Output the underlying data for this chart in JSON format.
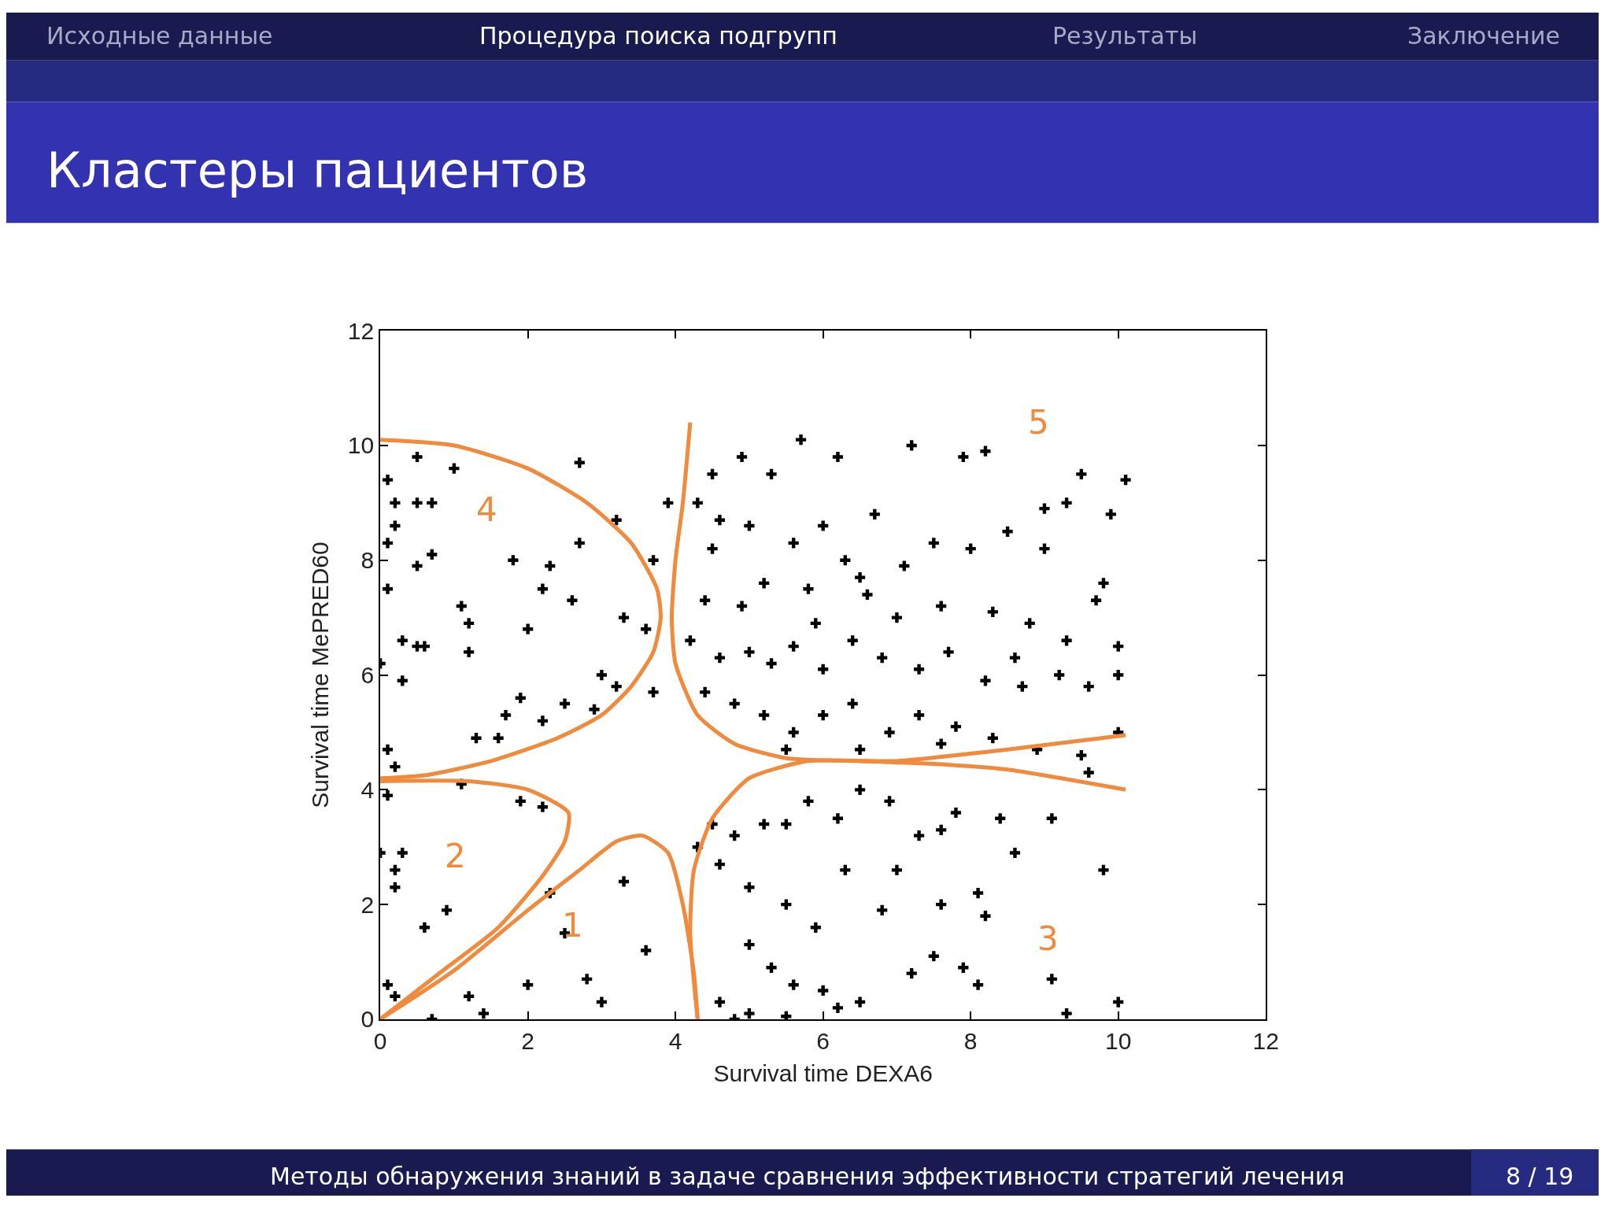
{
  "chart_data": {
    "type": "scatter",
    "title": "Кластеры пациентов",
    "xlabel": "Survival time DEXA6",
    "ylabel": "Survival time MePRED60",
    "xlim": [
      0,
      12
    ],
    "ylim": [
      0,
      12
    ],
    "xticks": [
      0,
      2,
      4,
      6,
      8,
      10,
      12
    ],
    "yticks": [
      0,
      2,
      4,
      6,
      8,
      10,
      12
    ],
    "series": [
      {
        "type": "scatter",
        "color": "#000000",
        "marker": "cross",
        "x": [
          0.1,
          0.2,
          0.2,
          0.5,
          0.7,
          0.5,
          0.7,
          0.1,
          0.1,
          0.3,
          0.5,
          0.3,
          1.1,
          1.2,
          1.2,
          1.7,
          1.3,
          1.6,
          2.0,
          2.2,
          2.6,
          2.7,
          2.7,
          2.3,
          0.1,
          0.2,
          3.3,
          3.2,
          3.0,
          3.2,
          2.9,
          3.6,
          0.5,
          1.0,
          1.8,
          2.5,
          3.7,
          3.9,
          0.0,
          0.6,
          1.9,
          2.2,
          3.7,
          4.5,
          4.9,
          5.3,
          5.7,
          6.2,
          7.2,
          7.9,
          8.2,
          4.3,
          4.6,
          5.0,
          5.6,
          6.0,
          6.3,
          6.5,
          7.1,
          7.5,
          8.0,
          8.5,
          9.0,
          9.5,
          10.1,
          9.9,
          9.3,
          4.4,
          4.9,
          5.2,
          5.8,
          6.6,
          7.0,
          7.6,
          8.3,
          8.8,
          9.3,
          9.7,
          10.0,
          4.2,
          4.6,
          5.0,
          5.3,
          5.6,
          6.0,
          6.4,
          6.8,
          7.3,
          7.7,
          8.2,
          8.7,
          9.2,
          9.6,
          10.0,
          4.4,
          4.8,
          5.2,
          5.6,
          6.0,
          6.4,
          6.9,
          7.3,
          7.8,
          8.3,
          8.9,
          9.5,
          10.0,
          5.5,
          6.5,
          7.6,
          9.0,
          8.6,
          5.9,
          6.7,
          4.5,
          9.8,
          4.3,
          4.5,
          4.8,
          5.2,
          5.5,
          5.8,
          6.2,
          6.5,
          6.9,
          7.3,
          7.6,
          7.8,
          8.4,
          9.1,
          9.6,
          9.8,
          8.6,
          4.6,
          5.0,
          5.5,
          6.3,
          7.0,
          7.6,
          8.1,
          8.2,
          5.0,
          5.3,
          5.6,
          6.0,
          4.6,
          5.0,
          5.5,
          6.2,
          6.5,
          7.5,
          7.9,
          8.1,
          9.1,
          9.3,
          10.0,
          4.8,
          6.8,
          5.9,
          7.2,
          0.1,
          0.0,
          0.2,
          0.3,
          0.2,
          1.1,
          1.9,
          2.2,
          0.9,
          0.6,
          0.1,
          0.2,
          2.3,
          2.5,
          3.3,
          3.6,
          2.8,
          3.0,
          2.0,
          1.2,
          1.4,
          0.7
        ],
        "values": [
          9.4,
          9.0,
          8.6,
          9.0,
          9.0,
          7.9,
          8.1,
          7.5,
          8.3,
          6.6,
          6.5,
          5.9,
          7.2,
          6.9,
          6.4,
          5.3,
          4.9,
          4.9,
          6.8,
          7.5,
          7.3,
          8.3,
          9.7,
          7.9,
          4.7,
          4.4,
          7.0,
          8.7,
          6.0,
          5.8,
          5.4,
          6.8,
          9.8,
          9.6,
          8.0,
          5.5,
          5.7,
          9.0,
          6.2,
          6.5,
          5.6,
          5.2,
          8.0,
          9.5,
          9.8,
          9.5,
          10.1,
          9.8,
          10.0,
          9.8,
          9.9,
          9.0,
          8.7,
          8.6,
          8.3,
          8.6,
          8.0,
          7.7,
          7.9,
          8.3,
          8.2,
          8.5,
          8.9,
          9.5,
          9.4,
          8.8,
          9.0,
          7.3,
          7.2,
          7.6,
          7.5,
          7.4,
          7.0,
          7.2,
          7.1,
          6.9,
          6.6,
          7.3,
          6.5,
          6.6,
          6.3,
          6.4,
          6.2,
          6.5,
          6.1,
          6.6,
          6.3,
          6.1,
          6.4,
          5.9,
          5.8,
          6.0,
          5.8,
          6.0,
          5.7,
          5.5,
          5.3,
          5.0,
          5.3,
          5.5,
          5.0,
          5.3,
          5.1,
          4.9,
          4.7,
          4.6,
          5.0,
          4.7,
          4.7,
          4.8,
          8.2,
          6.3,
          6.9,
          8.8,
          8.2,
          7.6,
          3.0,
          3.4,
          3.2,
          3.4,
          3.4,
          3.8,
          3.5,
          4.0,
          3.8,
          3.2,
          3.3,
          3.6,
          3.5,
          3.5,
          4.3,
          2.6,
          2.9,
          2.7,
          2.3,
          2.0,
          2.6,
          2.6,
          2.0,
          2.2,
          1.8,
          1.3,
          0.9,
          0.6,
          0.5,
          0.3,
          0.1,
          0.05,
          0.2,
          0.3,
          1.1,
          0.9,
          0.6,
          0.7,
          0.1,
          0.3,
          0.0,
          1.9,
          1.6,
          0.8,
          3.9,
          2.9,
          2.6,
          2.9,
          2.3,
          4.1,
          3.8,
          3.7,
          1.9,
          1.6,
          0.6,
          0.4,
          2.2,
          1.5,
          2.4,
          1.2,
          0.7,
          0.3,
          0.6,
          0.4,
          0.1,
          0.0
        ]
      },
      {
        "type": "line",
        "color": "#f08a3c",
        "x": [
          0,
          1,
          2,
          2.8,
          3.4,
          3.75,
          3.8,
          3.7,
          3.4,
          3.0,
          2.4,
          1.5,
          0.6,
          0
        ],
        "values": [
          10.1,
          10.0,
          9.6,
          9.0,
          8.3,
          7.5,
          7.0,
          6.4,
          5.8,
          5.3,
          4.9,
          4.5,
          4.25,
          4.2
        ]
      },
      {
        "type": "line",
        "color": "#f08a3c",
        "x": [
          4.2,
          4.1,
          4.0,
          3.95,
          4.0,
          4.3,
          4.8,
          5.5,
          6.5,
          7.5,
          8.5,
          10.1
        ],
        "values": [
          10.4,
          9.0,
          8.0,
          7.0,
          6.2,
          5.3,
          4.8,
          4.55,
          4.5,
          4.45,
          4.35,
          4.0
        ]
      },
      {
        "type": "line",
        "color": "#f08a3c",
        "x": [
          4.3,
          4.2,
          4.25,
          4.5,
          5.0,
          5.8,
          7.0,
          8.5,
          10.1
        ],
        "values": [
          0,
          1.5,
          2.6,
          3.5,
          4.2,
          4.5,
          4.5,
          4.7,
          4.95
        ]
      },
      {
        "type": "line",
        "color": "#f08a3c",
        "x": [
          0,
          1.2,
          2.0,
          2.55,
          2.5,
          2.2,
          1.6,
          0.8,
          0
        ],
        "values": [
          4.15,
          4.15,
          4.0,
          3.6,
          3.1,
          2.5,
          1.6,
          0.8,
          0
        ]
      },
      {
        "type": "line",
        "color": "#f08a3c",
        "x": [
          0,
          1.0,
          2.0,
          2.7,
          3.2,
          3.55,
          3.9,
          4.1,
          4.25,
          4.3
        ],
        "values": [
          0,
          0.85,
          1.9,
          2.6,
          3.1,
          3.2,
          2.9,
          2.0,
          0.8,
          0
        ]
      }
    ],
    "annotations": [
      "4",
      "5",
      "2",
      "1",
      "3",
      "Исходные данные",
      "Процедура поиска подгрупп",
      "Результаты",
      "Заключение",
      "Методы обнаружения знаний в задаче сравнения эффективности стратегий лечения",
      "8 / 19"
    ]
  }
}
